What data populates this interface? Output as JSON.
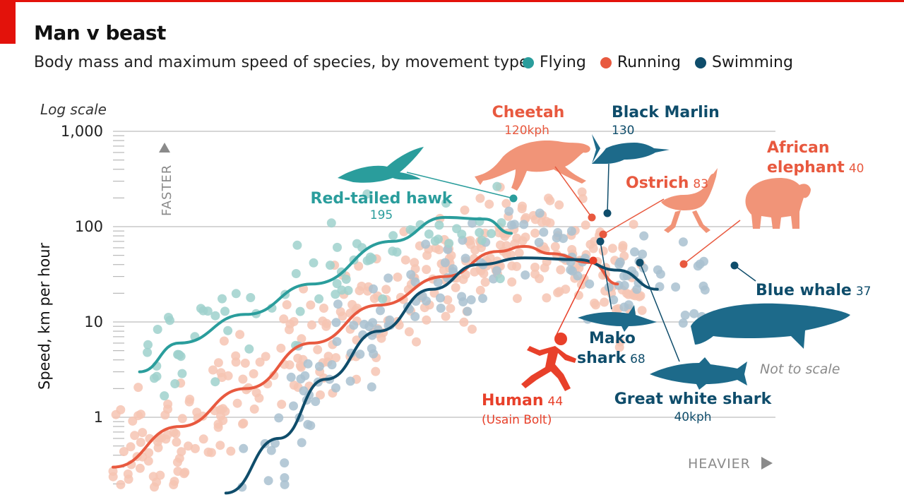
{
  "header": {
    "title": "Man v beast",
    "subtitle": "Body mass and maximum speed of species, by movement type"
  },
  "legend": [
    {
      "label": "Flying",
      "color": "#2a9d9c"
    },
    {
      "label": "Running",
      "color": "#e8593f"
    },
    {
      "label": "Swimming",
      "color": "#0f4d6b"
    }
  ],
  "chart_data": {
    "type": "scatter",
    "scale_note": "Log scale",
    "ylabel": "Speed, km per hour",
    "y_scale": "log",
    "ylim": [
      0.1,
      1000
    ],
    "y_ticks": [
      {
        "value": 1000,
        "label": "1,000"
      },
      {
        "value": 100,
        "label": "100"
      },
      {
        "value": 10,
        "label": "10"
      },
      {
        "value": 1,
        "label": "1"
      }
    ],
    "y_arrow_label": "FASTER",
    "x_arrow_label": "HEAVIER",
    "note": "Not to scale",
    "grid": true,
    "colors": {
      "flying_dots": "#9fd1cd",
      "running_dots": "#f6c4b3",
      "swimming_dots": "#a9c1d0",
      "flying": "#2a9d9c",
      "running": "#e8593f",
      "swimming": "#0f4d6b",
      "silhouette_running": "#f19478",
      "silhouette_swimming": "#1d6a8a",
      "human": "#e8402a"
    },
    "series": [
      {
        "name": "Flying",
        "curve": [
          [
            0.04,
            3
          ],
          [
            0.1,
            6
          ],
          [
            0.2,
            12
          ],
          [
            0.3,
            25
          ],
          [
            0.42,
            70
          ],
          [
            0.5,
            125
          ],
          [
            0.56,
            120
          ],
          [
            0.6,
            85
          ]
        ]
      },
      {
        "name": "Running",
        "curve": [
          [
            0.0,
            0.3
          ],
          [
            0.1,
            0.8
          ],
          [
            0.2,
            2
          ],
          [
            0.3,
            6
          ],
          [
            0.4,
            15
          ],
          [
            0.5,
            30
          ],
          [
            0.58,
            55
          ],
          [
            0.62,
            62
          ],
          [
            0.66,
            52
          ],
          [
            0.72,
            42
          ],
          [
            0.76,
            25
          ]
        ]
      },
      {
        "name": "Swimming",
        "curve": [
          [
            0.17,
            0.16
          ],
          [
            0.25,
            0.6
          ],
          [
            0.32,
            2.5
          ],
          [
            0.4,
            8
          ],
          [
            0.48,
            22
          ],
          [
            0.55,
            40
          ],
          [
            0.62,
            47
          ],
          [
            0.7,
            45
          ],
          [
            0.76,
            35
          ],
          [
            0.82,
            22
          ]
        ]
      }
    ],
    "highlights": [
      {
        "name": "Red-tailed hawk",
        "speed": "195",
        "series": "Flying",
        "x": 0.5,
        "y": 195
      },
      {
        "name": "Cheetah",
        "speed": "120kph",
        "series": "Running",
        "x": 0.6,
        "y": 120
      },
      {
        "name": "Black Marlin",
        "speed": "130",
        "series": "Swimming",
        "x": 0.63,
        "y": 130
      },
      {
        "name": "Ostrich",
        "speed": "83",
        "series": "Running",
        "x": 0.61,
        "y": 83
      },
      {
        "name": "African elephant",
        "name_line1": "African",
        "name_line2": "elephant",
        "speed": "40",
        "series": "Running",
        "x": 0.76,
        "y": 40
      },
      {
        "name": "Mako shark",
        "name_line1": "Mako",
        "name_line2": "shark",
        "speed": "68",
        "series": "Swimming",
        "x": 0.61,
        "y": 68
      },
      {
        "name": "Human",
        "speed": "44",
        "note": "(Usain Bolt)",
        "series": "Running",
        "x": 0.6,
        "y": 44
      },
      {
        "name": "Great white shark",
        "speed": "40kph",
        "series": "Swimming",
        "x": 0.69,
        "y": 40
      },
      {
        "name": "Blue whale",
        "speed": "37",
        "series": "Swimming",
        "x": 0.82,
        "y": 37
      }
    ]
  }
}
